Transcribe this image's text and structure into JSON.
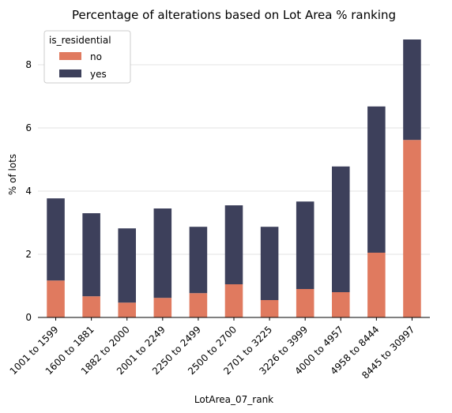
{
  "chart_data": {
    "type": "bar",
    "stacked": true,
    "title": "Percentage of alterations based on Lot Area % ranking",
    "xlabel": "LotArea_07_rank",
    "ylabel": "% of lots",
    "ylim": [
      0,
      9.0
    ],
    "yticks": [
      0,
      2,
      4,
      6,
      8
    ],
    "grid": "horizontal",
    "categories": [
      "1001 to 1599",
      "1600 to 1881",
      "1882 to 2000",
      "2001 to 2249",
      "2250 to 2499",
      "2500 to 2700",
      "2701 to 3225",
      "3226 to 3999",
      "4000 to 4957",
      "4958 to 8444",
      "8445 to 30997"
    ],
    "legend": {
      "title": "is_residential",
      "position": "top-left"
    },
    "series": [
      {
        "name": "no",
        "color": "#e07a5f",
        "values": [
          1.17,
          0.67,
          0.47,
          0.62,
          0.77,
          1.05,
          0.55,
          0.9,
          0.8,
          2.05,
          5.62
        ]
      },
      {
        "name": "yes",
        "color": "#3d405b",
        "values": [
          2.6,
          2.63,
          2.35,
          2.83,
          2.1,
          2.5,
          2.32,
          2.77,
          3.98,
          4.63,
          3.18
        ]
      }
    ]
  }
}
